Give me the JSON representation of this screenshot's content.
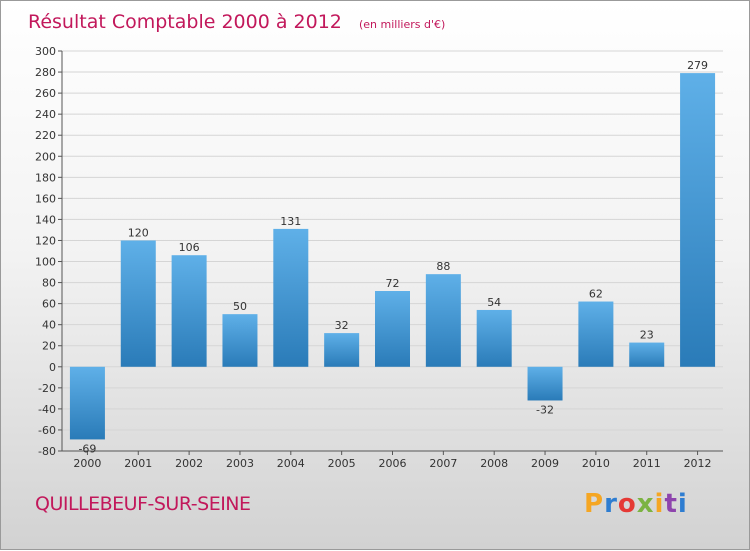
{
  "colors": {
    "title": "#c2185b",
    "bar_top": "#5fb0e8",
    "bar_bottom": "#2a7bb8",
    "logo_letters": [
      "#f5a623",
      "#2e7dd1",
      "#e53935",
      "#7cb342",
      "#f5a623",
      "#8e44ad",
      "#2e7dd1"
    ]
  },
  "commune": "QUILLEBEUF-SUR-SEINE",
  "logo": {
    "text": "Proxiti",
    "letters": [
      "P",
      "r",
      "o",
      "x",
      "i",
      "t",
      "i"
    ]
  },
  "chart_data": {
    "type": "bar",
    "title": "Résultat Comptable 2000 à 2012",
    "subtitle": "(en milliers d'€)",
    "categories": [
      "2000",
      "2001",
      "2002",
      "2003",
      "2004",
      "2005",
      "2006",
      "2007",
      "2008",
      "2009",
      "2010",
      "2011",
      "2012"
    ],
    "values": [
      -69,
      120,
      106,
      50,
      131,
      32,
      72,
      88,
      54,
      -32,
      62,
      23,
      279
    ],
    "ylim": [
      -80,
      300
    ],
    "ytick_step": 20,
    "grid": true,
    "xlabel": "",
    "ylabel": ""
  }
}
